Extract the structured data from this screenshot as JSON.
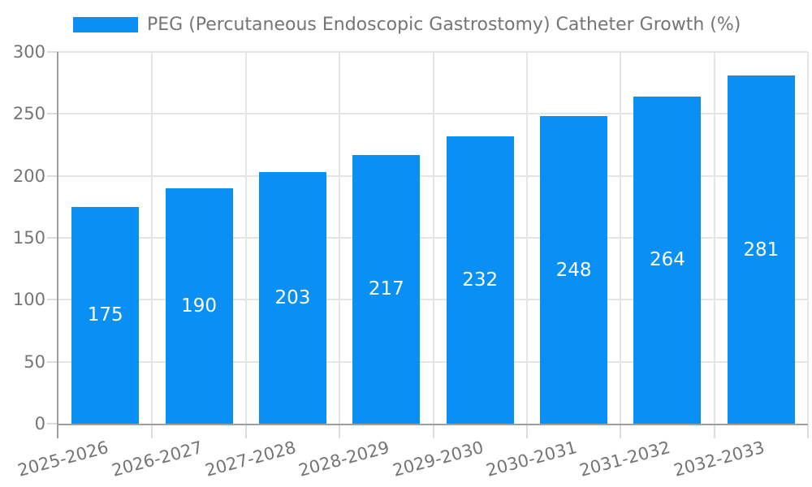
{
  "chart_data": {
    "type": "bar",
    "title": "PEG (Percutaneous Endoscopic Gastrostomy) Catheter Growth (%)",
    "legend": {
      "label": "PEG (Percutaneous Endoscopic Gastrostomy) Catheter Growth (%)",
      "position": "top",
      "swatch_color": "#0a90f5"
    },
    "categories": [
      "2025-2026",
      "2026-2027",
      "2027-2028",
      "2028-2029",
      "2029-2030",
      "2030-2031",
      "2031-2032",
      "2032-2033"
    ],
    "values": [
      175,
      190,
      203,
      217,
      232,
      248,
      264,
      281
    ],
    "xlabel": "",
    "ylabel": "",
    "ylim": [
      0,
      300
    ],
    "yticks": [
      0,
      50,
      100,
      150,
      200,
      250,
      300
    ],
    "x_tick_rotation_deg": -15,
    "grid": "on",
    "bar_color": "#0a90f5",
    "value_label_color": "#ffffff",
    "axis_label_color": "#757575",
    "axis_line_color": "#9e9e9e",
    "grid_color": "#e5e5e5"
  }
}
